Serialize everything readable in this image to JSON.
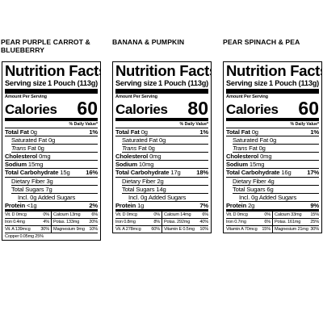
{
  "panels": [
    {
      "flavor_line1": "PEAR PURPLE CARROT &",
      "flavor_line2": "BLUEBERRY",
      "title": "Nutrition Facts",
      "serving_label": "Serving size",
      "serving_value": "1 Pouch (113g)",
      "amount_per_serving": "Amount Per Serving",
      "calories_label": "Calories",
      "calories": "60",
      "daily_value_header": "% Daily Value*",
      "total_fat": "0g",
      "total_fat_pct": "1%",
      "sat_fat": "0g",
      "trans_fat": "0g",
      "cholesterol": "0mg",
      "sodium": "15mg",
      "total_carb": "15g",
      "total_carb_pct": "16%",
      "fiber": "3g",
      "sugars": "7g",
      "added_sugars_label": "Incl. 0g Added Sugars",
      "protein": "<1g",
      "protein_pct": "2%",
      "micros": [
        [
          "Vit. D 0mcg",
          "0%",
          "Calcium 13mg",
          "6%"
        ],
        [
          "Iron 0.4mg",
          "4%",
          "Potas. 133mg",
          "20%"
        ],
        [
          "Vit. A 139mcg",
          "30%",
          "Magnesium 9mg",
          "10%"
        ]
      ],
      "micro_single": "Copper 0.05mg 25%"
    },
    {
      "flavor_line1": "BANANA & PUMPKIN",
      "flavor_line2": "",
      "title": "Nutrition Facts",
      "serving_label": "Serving size",
      "serving_value": "1 Pouch (113g)",
      "amount_per_serving": "Amount Per Serving",
      "calories_label": "Calories",
      "calories": "80",
      "daily_value_header": "% Daily Value*",
      "total_fat": "0g",
      "total_fat_pct": "1%",
      "sat_fat": "0g",
      "trans_fat": "0g",
      "cholesterol": "0mg",
      "sodium": "10mg",
      "total_carb": "17g",
      "total_carb_pct": "18%",
      "fiber": "2g",
      "sugars": "14g",
      "added_sugars_label": "Incl. 0g Added Sugars",
      "protein": "1g",
      "protein_pct": "7%",
      "micros": [
        [
          "Vit. D 0mcg",
          "0%",
          "Calcium 14mg",
          "6%"
        ],
        [
          "Iron 0.8mg",
          "8%",
          "Potas. 292mg",
          "40%"
        ],
        [
          "Vit. A 278mcg",
          "60%",
          "Vitamin E 0.5mg",
          "10%"
        ]
      ],
      "micro_single": ""
    },
    {
      "flavor_line1": "PEAR SPINACH & PEA",
      "flavor_line2": "",
      "title": "Nutrition Facts",
      "serving_label": "Serving size",
      "serving_value": "1 Pouch (113g)",
      "amount_per_serving": "Amount Per Serving",
      "calories_label": "Calories",
      "calories": "60",
      "daily_value_header": "% Daily Value*",
      "total_fat": "0g",
      "total_fat_pct": "1%",
      "sat_fat": "0g",
      "trans_fat": "0g",
      "cholesterol": "0mg",
      "sodium": "15mg",
      "total_carb": "16g",
      "total_carb_pct": "17%",
      "fiber": "4g",
      "sugars": "6g",
      "added_sugars_label": "Incl. 0g Added Sugars",
      "protein": "2g",
      "protein_pct": "9%",
      "micros": [
        [
          "Vit. D 0mcg",
          "0%",
          "Calcium 33mg",
          "15%"
        ],
        [
          "Iron 0.7mg",
          "6%",
          "Potas. 161mg",
          "25%"
        ],
        [
          "Vitamin A 70mcg",
          "15%",
          "Magnesium 21mg",
          "30%"
        ]
      ],
      "micro_single": ""
    }
  ],
  "labels": {
    "total_fat": "Total Fat",
    "sat_fat": "Saturated Fat",
    "trans": "Trans",
    "fat": "Fat",
    "cholesterol": "Cholesterol",
    "sodium": "Sodium",
    "total_carb": "Total Carbohydrate",
    "fiber": "Dietary Fiber",
    "sugars": "Total Sugars",
    "protein": "Protein"
  }
}
